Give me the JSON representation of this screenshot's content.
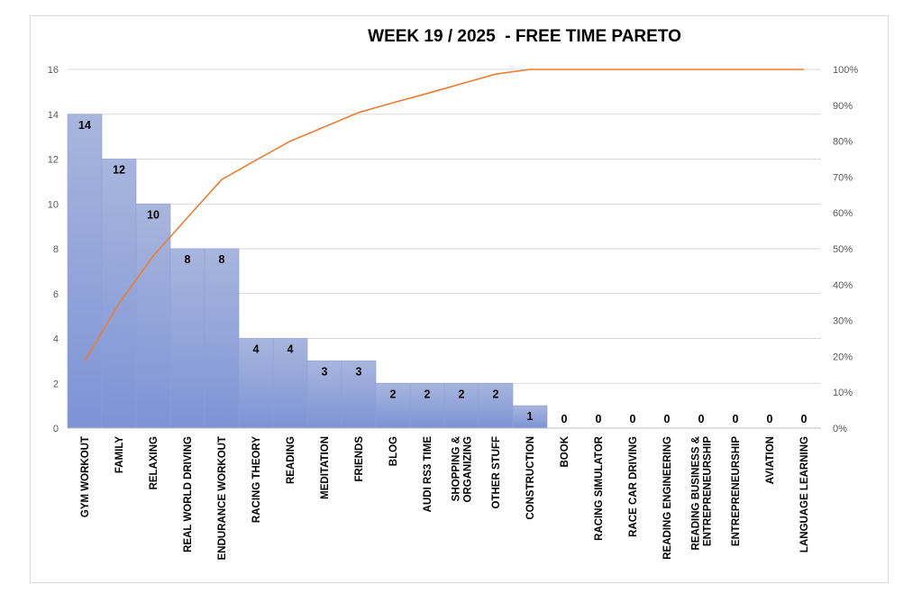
{
  "chart_data": {
    "type": "bar",
    "title": "WEEK 19 / 2025  - FREE TIME PARETO",
    "categories": [
      [
        "GYM WORKOUT"
      ],
      [
        "FAMILY"
      ],
      [
        "RELAXING"
      ],
      [
        "REAL WORLD DRIVING"
      ],
      [
        "ENDURANCE WORKOUT"
      ],
      [
        "RACING THEORY"
      ],
      [
        "READING"
      ],
      [
        "MEDITATION"
      ],
      [
        "FRIENDS"
      ],
      [
        "BLOG"
      ],
      [
        "AUDI RS3 TIME"
      ],
      [
        "SHOPPING &",
        "ORGANIZING"
      ],
      [
        "OTHER STUFF"
      ],
      [
        "CONSTRUCTION"
      ],
      [
        "BOOK"
      ],
      [
        "RACING SIMULATOR"
      ],
      [
        "RACE CAR DRIVING"
      ],
      [
        "READING ENGINEERING"
      ],
      [
        "READING BUSINESS &",
        "ENTREPRENEURSHIP"
      ],
      [
        "ENTREPRENEURSHIP"
      ],
      [
        "AVIATION"
      ],
      [
        "LANGUAGE LEARNING"
      ]
    ],
    "values": [
      14,
      12,
      10,
      8,
      8,
      4,
      4,
      3,
      3,
      2,
      2,
      2,
      2,
      1,
      0,
      0,
      0,
      0,
      0,
      0,
      0,
      0
    ],
    "cumulative_percent": [
      18.7,
      34.7,
      48.0,
      58.7,
      69.3,
      74.7,
      80.0,
      84.0,
      88.0,
      90.7,
      93.3,
      96.0,
      98.7,
      100,
      100,
      100,
      100,
      100,
      100,
      100,
      100,
      100
    ],
    "y_left": {
      "min": 0,
      "max": 16,
      "ticks": [
        "0",
        "2",
        "4",
        "6",
        "8",
        "10",
        "12",
        "14",
        "16"
      ]
    },
    "y_right": {
      "min": 0,
      "max": 100,
      "ticks": [
        "0%",
        "10%",
        "20%",
        "30%",
        "40%",
        "50%",
        "60%",
        "70%",
        "80%",
        "90%",
        "100%"
      ]
    },
    "grid": true,
    "colors": {
      "bar_top": "#a8b6dd",
      "bar_bottom": "#7d93d6",
      "bar_edge": "#8c9fd8",
      "line": "#ed7d31",
      "grid": "#d9d9d9"
    }
  }
}
